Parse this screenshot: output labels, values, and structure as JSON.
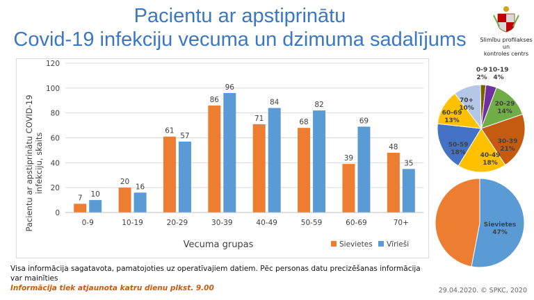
{
  "header": {
    "title_line1": "Pacientu ar apstiprinātu",
    "title_line2": "Covid-19 infekciju vecuma un dzimuma sadalījums",
    "logo_text_line1": "Slimību profilakses un",
    "logo_text_line2": "kontroles centrs"
  },
  "footer": {
    "note": "Visa informācija sagatavota, pamatojoties uz operatīvajiem datiem. Pēc personas datu precizēšanas informācija var mainīties",
    "update_note": "Informācija tiek atjaunota katru dienu plkst. 9.00",
    "credit": "29.04.2020. © SPKC, 2020"
  },
  "colors": {
    "female": "#ed7d31",
    "male": "#5b9bd5",
    "title": "#3b78c4"
  },
  "chart_data": [
    {
      "type": "bar",
      "categories": [
        "0-9",
        "10-19",
        "20-29",
        "30-39",
        "40-49",
        "50-59",
        "60-69",
        "70+"
      ],
      "series": [
        {
          "name": "Sievietes",
          "color": "#ed7d31",
          "values": [
            7,
            20,
            61,
            86,
            71,
            68,
            39,
            48
          ]
        },
        {
          "name": "Vīrieši",
          "color": "#5b9bd5",
          "values": [
            10,
            16,
            57,
            96,
            84,
            82,
            69,
            35
          ]
        }
      ],
      "xlabel": "Vecuma grupas",
      "ylabel_line1": "Pacientu ar apstiprinātu COVID-19",
      "ylabel_line2": "infekciju, skaits",
      "ylim": [
        0,
        120
      ],
      "yticks": [
        0,
        20,
        40,
        60,
        80,
        100,
        120
      ],
      "grid": true,
      "legend_position": "bottom-right"
    },
    {
      "type": "pie",
      "slices": [
        {
          "label": "0-9",
          "pct_label": "2%",
          "value": 2,
          "color": "#7f6000"
        },
        {
          "label": "10-19",
          "pct_label": "4%",
          "value": 4,
          "color": "#7030a0"
        },
        {
          "label": "20-29",
          "pct_label": "14%",
          "value": 14,
          "color": "#70ad47"
        },
        {
          "label": "30-39",
          "pct_label": "21%",
          "value": 21,
          "color": "#c55a11"
        },
        {
          "label": "40-49",
          "pct_label": "18%",
          "value": 18,
          "color": "#ffc000"
        },
        {
          "label": "50-59",
          "pct_label": "18%",
          "value": 18,
          "color": "#4472c4"
        },
        {
          "label": "60-69",
          "pct_label": "13%",
          "value": 13,
          "color": "#ffc000"
        },
        {
          "label": "70+",
          "pct_label": "10%",
          "value": 10,
          "color": "#b4c7e7"
        }
      ]
    },
    {
      "type": "pie",
      "slices": [
        {
          "label": "Vīrieši",
          "pct_label": "53%",
          "value": 53,
          "color": "#5b9bd5"
        },
        {
          "label": "Sievietes",
          "pct_label": "47%",
          "value": 47,
          "color": "#ed7d31"
        }
      ]
    }
  ]
}
